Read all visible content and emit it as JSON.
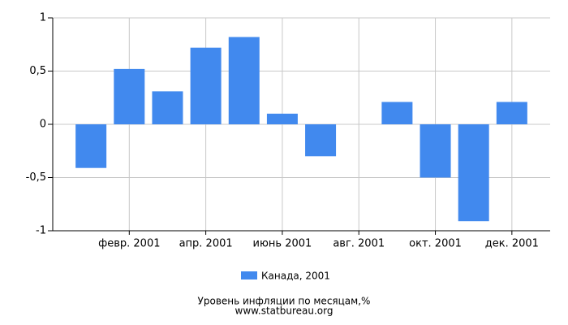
{
  "chart_data": {
    "type": "bar",
    "categories": [
      null,
      "февр. 2001",
      null,
      "апр. 2001",
      null,
      "июнь 2001",
      null,
      "авг. 2001",
      null,
      "окт. 2001",
      null,
      "дек. 2001"
    ],
    "series": [
      {
        "name": "Канада, 2001",
        "color": "#4189ee",
        "values": [
          -0.41,
          0.52,
          0.31,
          0.72,
          0.82,
          0.1,
          -0.3,
          0,
          0.21,
          -0.5,
          -0.91,
          0.21
        ]
      }
    ],
    "ylim": [
      -1,
      1
    ],
    "yticks": [
      -1,
      {
        "value": -0.5,
        "label": "-0,5"
      },
      0,
      {
        "value": 0.5,
        "label": "0,5"
      },
      1
    ],
    "grid": true,
    "title": "Уровень инфляции по месяцам,%",
    "subtitle": "www.statbureau.org"
  }
}
